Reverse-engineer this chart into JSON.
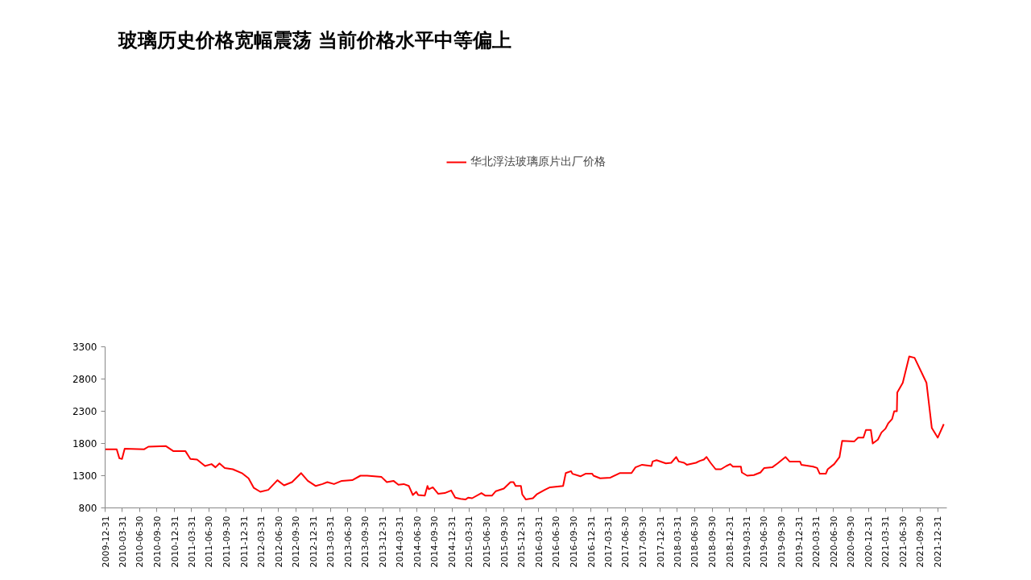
{
  "chart_data": {
    "type": "line",
    "title": "玻璃历史价格宽幅震荡 当前价格水平中等偏上",
    "x": [
      "2009-12-31",
      "2010-03-02",
      "2010-03-16",
      "2010-03-30",
      "2010-04-13",
      "2010-07-25",
      "2010-08-16",
      "2010-11-15",
      "2010-12-26",
      "2011-02-27",
      "2011-03-25",
      "2011-04-29",
      "2011-06-10",
      "2011-07-14",
      "2011-08-04",
      "2011-08-25",
      "2011-09-22",
      "2011-11-03",
      "2011-12-21",
      "2012-01-25",
      "2012-02-22",
      "2012-03-27",
      "2012-05-08",
      "2012-06-25",
      "2012-07-30",
      "2012-09-10",
      "2012-10-28",
      "2012-12-02",
      "2013-01-13",
      "2013-02-17",
      "2013-03-15",
      "2013-04-19",
      "2013-05-30",
      "2013-07-24",
      "2013-09-05",
      "2013-10-10",
      "2013-12-25",
      "2014-01-22",
      "2014-02-26",
      "2014-03-24",
      "2014-04-21",
      "2014-05-18",
      "2014-06-08",
      "2014-06-26",
      "2014-07-06",
      "2014-08-10",
      "2014-08-24",
      "2014-08-31",
      "2014-09-21",
      "2014-10-19",
      "2014-11-23",
      "2014-12-27",
      "2015-01-17",
      "2015-02-14",
      "2015-03-12",
      "2015-03-26",
      "2015-04-16",
      "2015-06-04",
      "2015-06-25",
      "2015-07-29",
      "2015-08-19",
      "2015-09-30",
      "2015-11-04",
      "2015-11-20",
      "2015-12-01",
      "2015-12-29",
      "2016-01-05",
      "2016-01-24",
      "2016-03-01",
      "2016-03-21",
      "2016-05-02",
      "2016-05-30",
      "2016-08-07",
      "2016-08-21",
      "2016-09-18",
      "2016-09-25",
      "2016-11-06",
      "2016-12-03",
      "2017-01-07",
      "2017-01-14",
      "2017-02-18",
      "2017-04-13",
      "2017-06-01",
      "2017-08-02",
      "2017-08-23",
      "2017-09-27",
      "2017-11-15",
      "2017-11-21",
      "2017-12-12",
      "2018-01-30",
      "2018-02-27",
      "2018-03-25",
      "2018-04-08",
      "2018-05-06",
      "2018-05-20",
      "2018-07-07",
      "2018-07-28",
      "2018-08-18",
      "2018-09-01",
      "2018-09-22",
      "2018-10-19",
      "2018-11-16",
      "2018-12-14",
      "2019-01-04",
      "2019-01-18",
      "2019-03-01",
      "2019-03-06",
      "2019-04-03",
      "2019-05-08",
      "2019-06-12",
      "2019-07-02",
      "2019-08-13",
      "2019-09-10",
      "2019-10-22",
      "2019-11-12",
      "2020-01-06",
      "2020-01-13",
      "2020-03-15",
      "2020-04-05",
      "2020-04-19",
      "2020-05-21",
      "2020-05-31",
      "2020-07-04",
      "2020-08-01",
      "2020-08-15",
      "2020-10-17",
      "2020-11-07",
      "2020-12-05",
      "2020-12-18",
      "2021-01-13",
      "2021-01-23",
      "2021-02-19",
      "2021-03-10",
      "2021-03-31",
      "2021-04-14",
      "2021-05-05",
      "2021-05-16",
      "2021-05-30",
      "2021-06-01",
      "2021-06-30",
      "2021-08-03",
      "2021-08-31",
      "2021-11-02",
      "2021-11-30",
      "2021-12-31",
      "2022-02-01"
    ],
    "series": [
      {
        "name": "华北浮法玻璃原片出厂价格",
        "color": "#ff0000",
        "values": [
          1710,
          1710,
          1570,
          1560,
          1720,
          1710,
          1750,
          1760,
          1680,
          1680,
          1560,
          1550,
          1450,
          1480,
          1430,
          1490,
          1420,
          1400,
          1340,
          1260,
          1110,
          1050,
          1080,
          1230,
          1150,
          1200,
          1340,
          1220,
          1140,
          1170,
          1200,
          1170,
          1220,
          1230,
          1300,
          1300,
          1280,
          1200,
          1220,
          1160,
          1170,
          1140,
          1000,
          1050,
          1000,
          990,
          1140,
          1090,
          1120,
          1020,
          1030,
          1070,
          960,
          940,
          930,
          960,
          950,
          1030,
          990,
          990,
          1060,
          1100,
          1200,
          1200,
          1140,
          1140,
          1010,
          930,
          950,
          1010,
          1080,
          1120,
          1140,
          1340,
          1370,
          1330,
          1290,
          1330,
          1330,
          1300,
          1260,
          1270,
          1340,
          1340,
          1430,
          1470,
          1450,
          1520,
          1540,
          1490,
          1500,
          1590,
          1520,
          1500,
          1470,
          1500,
          1530,
          1550,
          1590,
          1500,
          1400,
          1400,
          1450,
          1480,
          1440,
          1440,
          1350,
          1300,
          1310,
          1350,
          1420,
          1430,
          1490,
          1590,
          1520,
          1520,
          1470,
          1440,
          1420,
          1330,
          1330,
          1400,
          1480,
          1590,
          1840,
          1830,
          1890,
          1890,
          2010,
          2010,
          1800,
          1860,
          1970,
          2030,
          2110,
          2180,
          2300,
          2300,
          2590,
          2740,
          3150,
          3130,
          2740,
          2040,
          1890,
          2100
        ]
      }
    ],
    "ylim": [
      800,
      3300
    ],
    "yticks": [
      800,
      1300,
      1800,
      2300,
      2800,
      3300
    ],
    "xlim": [
      "2009-12-31",
      "2022-02-17"
    ],
    "xticks": [
      "2009-12-31",
      "2010-03-31",
      "2010-06-30",
      "2010-09-30",
      "2010-12-31",
      "2011-03-31",
      "2011-06-30",
      "2011-09-30",
      "2011-12-31",
      "2012-03-31",
      "2012-06-30",
      "2012-09-30",
      "2012-12-31",
      "2013-03-31",
      "2013-06-30",
      "2013-09-30",
      "2013-12-31",
      "2014-03-31",
      "2014-06-30",
      "2014-09-30",
      "2014-12-31",
      "2015-03-31",
      "2015-06-30",
      "2015-09-30",
      "2015-12-31",
      "2016-03-31",
      "2016-06-30",
      "2016-09-30",
      "2016-12-31",
      "2017-03-31",
      "2017-06-30",
      "2017-09-30",
      "2017-12-31",
      "2018-03-31",
      "2018-06-30",
      "2018-09-30",
      "2018-12-31",
      "2019-03-31",
      "2019-06-30",
      "2019-09-30",
      "2019-12-31",
      "2020-03-31",
      "2020-06-30",
      "2020-09-30",
      "2020-12-31",
      "2021-03-31",
      "2021-06-30",
      "2021-09-30",
      "2021-12-31"
    ],
    "legend": "top",
    "grid": false,
    "marker": "none",
    "line_style": "solid"
  }
}
